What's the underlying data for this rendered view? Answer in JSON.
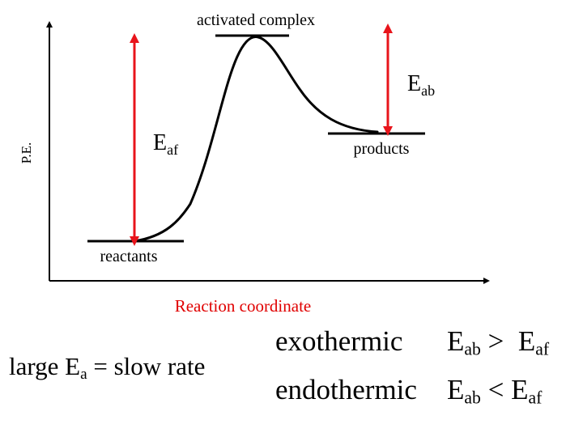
{
  "diagram": {
    "y_axis_label": "P.E.",
    "x_axis_label": "Reaction coordinate",
    "activated_complex_label": "activated complex",
    "reactants_label": "reactants",
    "products_label": "products",
    "eaf": {
      "symbol": "E",
      "subscript": "af"
    },
    "eab": {
      "symbol": "E",
      "subscript": "ab"
    },
    "colors": {
      "arrow": "#e8141b",
      "x_axis_label": "#e00000",
      "curve": "#000000"
    }
  },
  "notes": {
    "rate": {
      "prefix": "large E",
      "subscript": "a",
      "suffix": " = slow rate"
    },
    "exothermic": {
      "word": "exothermic",
      "left_symbol": "E",
      "left_sub": "ab",
      "operator": ">",
      "right_symbol": "E",
      "right_sub": "af"
    },
    "endothermic": {
      "word": "endothermic",
      "left_symbol": "E",
      "left_sub": "ab",
      "operator": "<",
      "right_symbol": "E",
      "right_sub": "af"
    }
  }
}
